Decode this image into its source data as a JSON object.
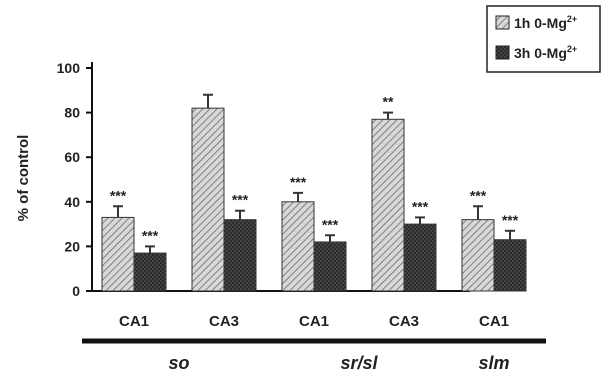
{
  "chart_data": {
    "type": "bar",
    "ylabel": "% of control",
    "ylim": [
      0,
      100
    ],
    "yticks": [
      0,
      20,
      40,
      60,
      80,
      100
    ],
    "grid": false,
    "legend_position": "top-right",
    "series": [
      {
        "name": "1h 0-Mg",
        "name_superscript": "2+",
        "pattern": "diagonal-hatch"
      },
      {
        "name": "3h 0-Mg",
        "name_superscript": "2+",
        "pattern": "dark-dots"
      }
    ],
    "groups": [
      {
        "label": "so",
        "categories": [
          {
            "label": "CA1",
            "values": [
              33,
              17
            ],
            "errors": [
              5,
              3
            ],
            "marks": [
              "***",
              "***"
            ]
          },
          {
            "label": "CA3",
            "values": [
              82,
              32
            ],
            "errors": [
              6,
              4
            ],
            "marks": [
              "",
              "***"
            ]
          }
        ]
      },
      {
        "label": "sr/sl",
        "categories": [
          {
            "label": "CA1",
            "values": [
              40,
              22
            ],
            "errors": [
              4,
              3
            ],
            "marks": [
              "***",
              "***"
            ]
          },
          {
            "label": "CA3",
            "values": [
              77,
              30
            ],
            "errors": [
              3,
              3
            ],
            "marks": [
              "**",
              "***"
            ]
          }
        ]
      },
      {
        "label": "slm",
        "categories": [
          {
            "label": "CA1",
            "values": [
              32,
              23
            ],
            "errors": [
              6,
              4
            ],
            "marks": [
              "***",
              "***"
            ]
          }
        ]
      }
    ]
  },
  "colors": {
    "axis": "#111111",
    "hatch_bg": "#d8d8d8",
    "hatch_line": "#6a6a6a",
    "dots_bg": "#2b2b2b",
    "dots_fg": "#6a6a6a"
  }
}
